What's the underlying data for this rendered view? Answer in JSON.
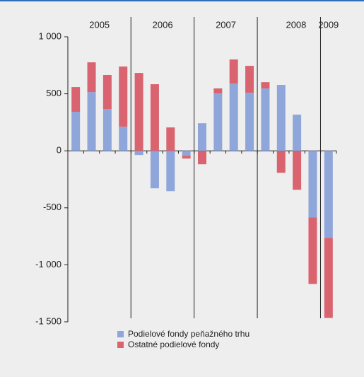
{
  "chart_data": {
    "type": "bar",
    "stacked": true,
    "categories": [
      null,
      null,
      null,
      null,
      null,
      null,
      null,
      null,
      null,
      null,
      null,
      null,
      null,
      null,
      null,
      null,
      null
    ],
    "group_labels": [
      "2005",
      "2006",
      "2007",
      "2008",
      "2009"
    ],
    "series": [
      {
        "name": "Podielové fondy peňažného trhu",
        "color": "#8fa6da",
        "values": [
          342,
          515,
          366,
          211,
          -37,
          -329,
          -354,
          -43,
          242,
          503,
          590,
          509,
          547,
          578,
          317,
          -584,
          -764
        ]
      },
      {
        "name": "Ostatné podielové fondy",
        "color": "#d9646f",
        "values": [
          217,
          261,
          299,
          528,
          683,
          584,
          205,
          -25,
          -118,
          44,
          211,
          236,
          55,
          -193,
          -342,
          -584,
          -702
        ]
      }
    ],
    "ylim": [
      -1500,
      1000
    ],
    "yticks": [
      {
        "value": 1000,
        "label": "1 000"
      },
      500,
      0,
      -500,
      {
        "value": -1000,
        "label": "-1 000"
      },
      {
        "value": -1500,
        "label": "-1 500"
      }
    ],
    "grid": false,
    "legend": "bottom"
  }
}
